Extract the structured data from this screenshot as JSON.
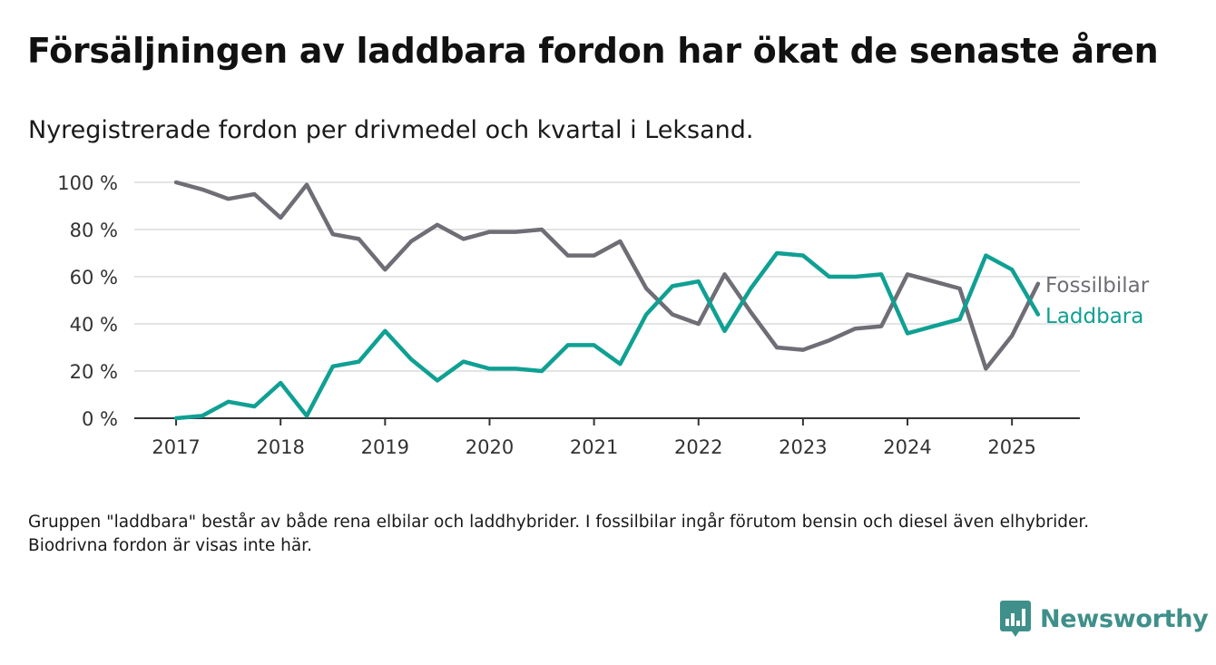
{
  "title": "Försäljningen av laddbara fordon har ökat de senaste åren",
  "subtitle": "Nyregistrerade fordon per drivmedel och kvartal i Leksand.",
  "footnote": "Gruppen \"laddbara\" består av både rena elbilar och laddhybrider. I fossilbilar ingår förutom bensin och diesel även elhybrider. Biodrivna fordon är visas inte här.",
  "brand": {
    "name": "Newsworthy",
    "icon": "bar-chart-logo-icon",
    "color": "#3f8f8a"
  },
  "chart_data": {
    "type": "line",
    "x": [
      2017,
      2017.25,
      2017.5,
      2017.75,
      2018,
      2018.25,
      2018.5,
      2018.75,
      2019,
      2019.25,
      2019.5,
      2019.75,
      2020,
      2020.25,
      2020.5,
      2020.75,
      2021,
      2021.25,
      2021.5,
      2021.75,
      2022,
      2022.25,
      2022.5,
      2022.75,
      2023,
      2023.25,
      2023.5,
      2023.75,
      2024,
      2024.25,
      2024.5,
      2024.75,
      2025,
      2025.25
    ],
    "series": [
      {
        "name": "Fossilbilar",
        "color": "#6f6d75",
        "values": [
          100,
          97,
          93,
          95,
          85,
          99,
          78,
          76,
          63,
          75,
          82,
          76,
          79,
          79,
          80,
          69,
          69,
          75,
          55,
          44,
          40,
          61,
          45,
          30,
          29,
          33,
          38,
          39,
          61,
          58,
          55,
          21,
          35,
          57
        ]
      },
      {
        "name": "Laddbara",
        "color": "#0fa093",
        "values": [
          0,
          1,
          7,
          5,
          15,
          1,
          22,
          24,
          37,
          25,
          16,
          24,
          21,
          21,
          20,
          31,
          31,
          23,
          44,
          56,
          58,
          37,
          55,
          70,
          69,
          60,
          60,
          61,
          36,
          39,
          42,
          69,
          63,
          44
        ]
      }
    ],
    "ylim": [
      0,
      100
    ],
    "yticks": [
      0,
      20,
      40,
      60,
      80,
      100
    ],
    "ytick_labels": [
      "0 %",
      "20 %",
      "40 %",
      "60 %",
      "80 %",
      "100 %"
    ],
    "xlim": [
      2016.6,
      2025.65
    ],
    "xticks": [
      2017,
      2018,
      2019,
      2020,
      2021,
      2022,
      2023,
      2024,
      2025
    ],
    "xtick_labels": [
      "2017",
      "2018",
      "2019",
      "2020",
      "2021",
      "2022",
      "2023",
      "2024",
      "2025"
    ],
    "grid": true,
    "legend": "direct labels at line ends"
  }
}
